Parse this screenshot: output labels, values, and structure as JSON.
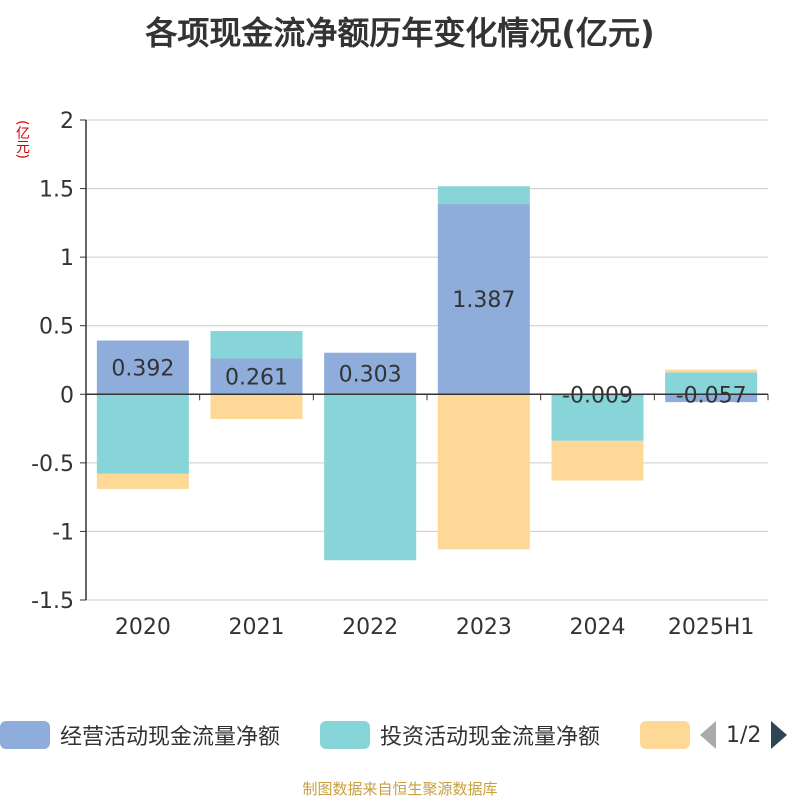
{
  "title": "各项现金流净额历年变化情况(亿元)",
  "unit": "(亿元)",
  "footer": "制图数据来自恒生聚源数据库",
  "pager": {
    "text": "1/2"
  },
  "colors": {
    "operating": "#8eaddb",
    "investing": "#87d5d8",
    "financing": "#fdd896",
    "grid": "#cccccc",
    "axis": "#333333"
  },
  "chart_data": {
    "type": "bar",
    "stacked": true,
    "title": "各项现金流净额历年变化情况(亿元)",
    "ylabel": "(亿元)",
    "categories": [
      "2020",
      "2021",
      "2022",
      "2023",
      "2024",
      "2025H1"
    ],
    "yticks": [
      "2",
      "1.5",
      "1",
      "0.5",
      "0",
      "-0.5",
      "-1",
      "-1.5"
    ],
    "ylim": [
      -1.5,
      2
    ],
    "grid": true,
    "legend_position": "bottom",
    "series": [
      {
        "name": "经营活动现金流量净额",
        "color": "#8eaddb",
        "values": [
          0.392,
          0.261,
          0.303,
          1.387,
          -0.009,
          -0.057
        ],
        "labels": [
          "0.392",
          "0.261",
          "0.303",
          "1.387",
          "-0.009",
          "-0.057"
        ]
      },
      {
        "name": "投资活动现金流量净额",
        "color": "#87d5d8",
        "values": [
          -0.58,
          0.2,
          -1.21,
          0.13,
          -0.33,
          0.16
        ]
      },
      {
        "name": "",
        "color": "#fdd896",
        "values": [
          -0.11,
          -0.18,
          0.0,
          -1.13,
          -0.29,
          0.02
        ]
      }
    ]
  }
}
